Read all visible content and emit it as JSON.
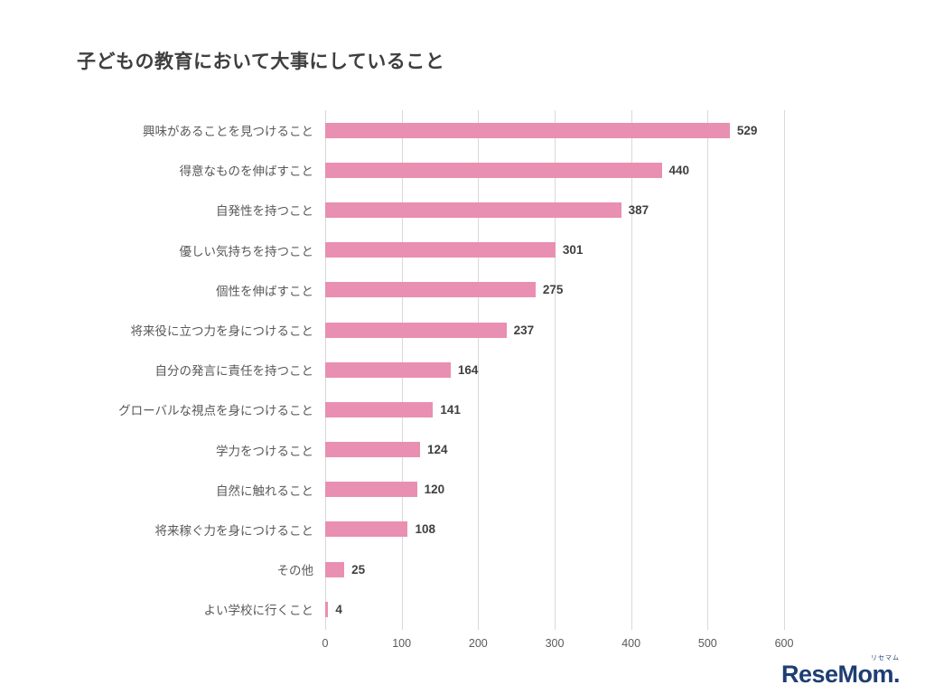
{
  "chart_data": {
    "type": "bar",
    "orientation": "horizontal",
    "title": "子どもの教育において大事にしていること",
    "categories": [
      "興味があることを見つけること",
      "得意なものを伸ばすこと",
      "自発性を持つこと",
      "優しい気持ちを持つこと",
      "個性を伸ばすこと",
      "将来役に立つ力を身につけること",
      "自分の発言に責任を持つこと",
      "グローバルな視点を身につけること",
      "学力をつけること",
      "自然に触れること",
      "将来稼ぐ力を身につけること",
      "その他",
      "よい学校に行くこと"
    ],
    "values": [
      529,
      440,
      387,
      301,
      275,
      237,
      164,
      141,
      124,
      120,
      108,
      25,
      4
    ],
    "xlim": [
      0,
      600
    ],
    "xticks": [
      0,
      100,
      200,
      300,
      400,
      500,
      600
    ],
    "grid": "vertical",
    "bar_color": "#e98fb1",
    "label_color": "#595959",
    "value_label_color": "#404040",
    "gridline_color": "#d9d9d9"
  },
  "logo": {
    "small_text": "リセマム",
    "text": "ReseMom.",
    "color": "#1e3e73"
  }
}
